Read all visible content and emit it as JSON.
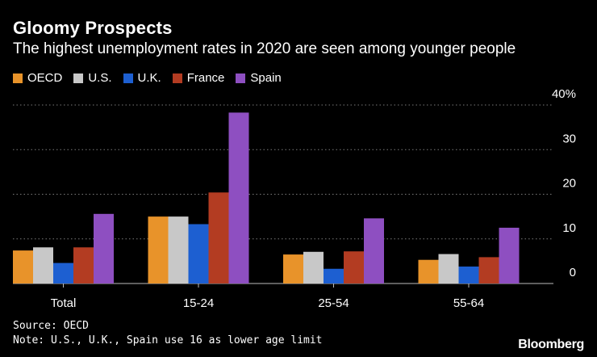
{
  "chart_data": {
    "type": "bar",
    "title": "Gloomy Prospects",
    "subtitle": "The highest unemployment rates in 2020 are seen among younger people",
    "categories": [
      "Total",
      "15-24",
      "25-54",
      "55-64"
    ],
    "series": [
      {
        "name": "OECD",
        "color": "#e8932a",
        "values": [
          7.4,
          15.0,
          6.5,
          5.3
        ]
      },
      {
        "name": "U.S.",
        "color": "#c8c8c8",
        "values": [
          8.1,
          15.0,
          7.1,
          6.6
        ]
      },
      {
        "name": "U.K.",
        "color": "#1d5fd1",
        "values": [
          4.6,
          13.3,
          3.3,
          3.8
        ]
      },
      {
        "name": "France",
        "color": "#b33c22",
        "values": [
          8.1,
          20.4,
          7.2,
          5.9
        ]
      },
      {
        "name": "Spain",
        "color": "#8e4fc1",
        "values": [
          15.6,
          38.3,
          14.6,
          12.5
        ]
      }
    ],
    "y_ticks": [
      "0",
      "10",
      "20",
      "30",
      "40%"
    ],
    "ylim": [
      0,
      40
    ],
    "grid": true,
    "legend": "top-left"
  },
  "source": "Source: OECD",
  "note": "Note: U.S., U.K., Spain use 16 as lower age limit",
  "brand": "Bloomberg"
}
